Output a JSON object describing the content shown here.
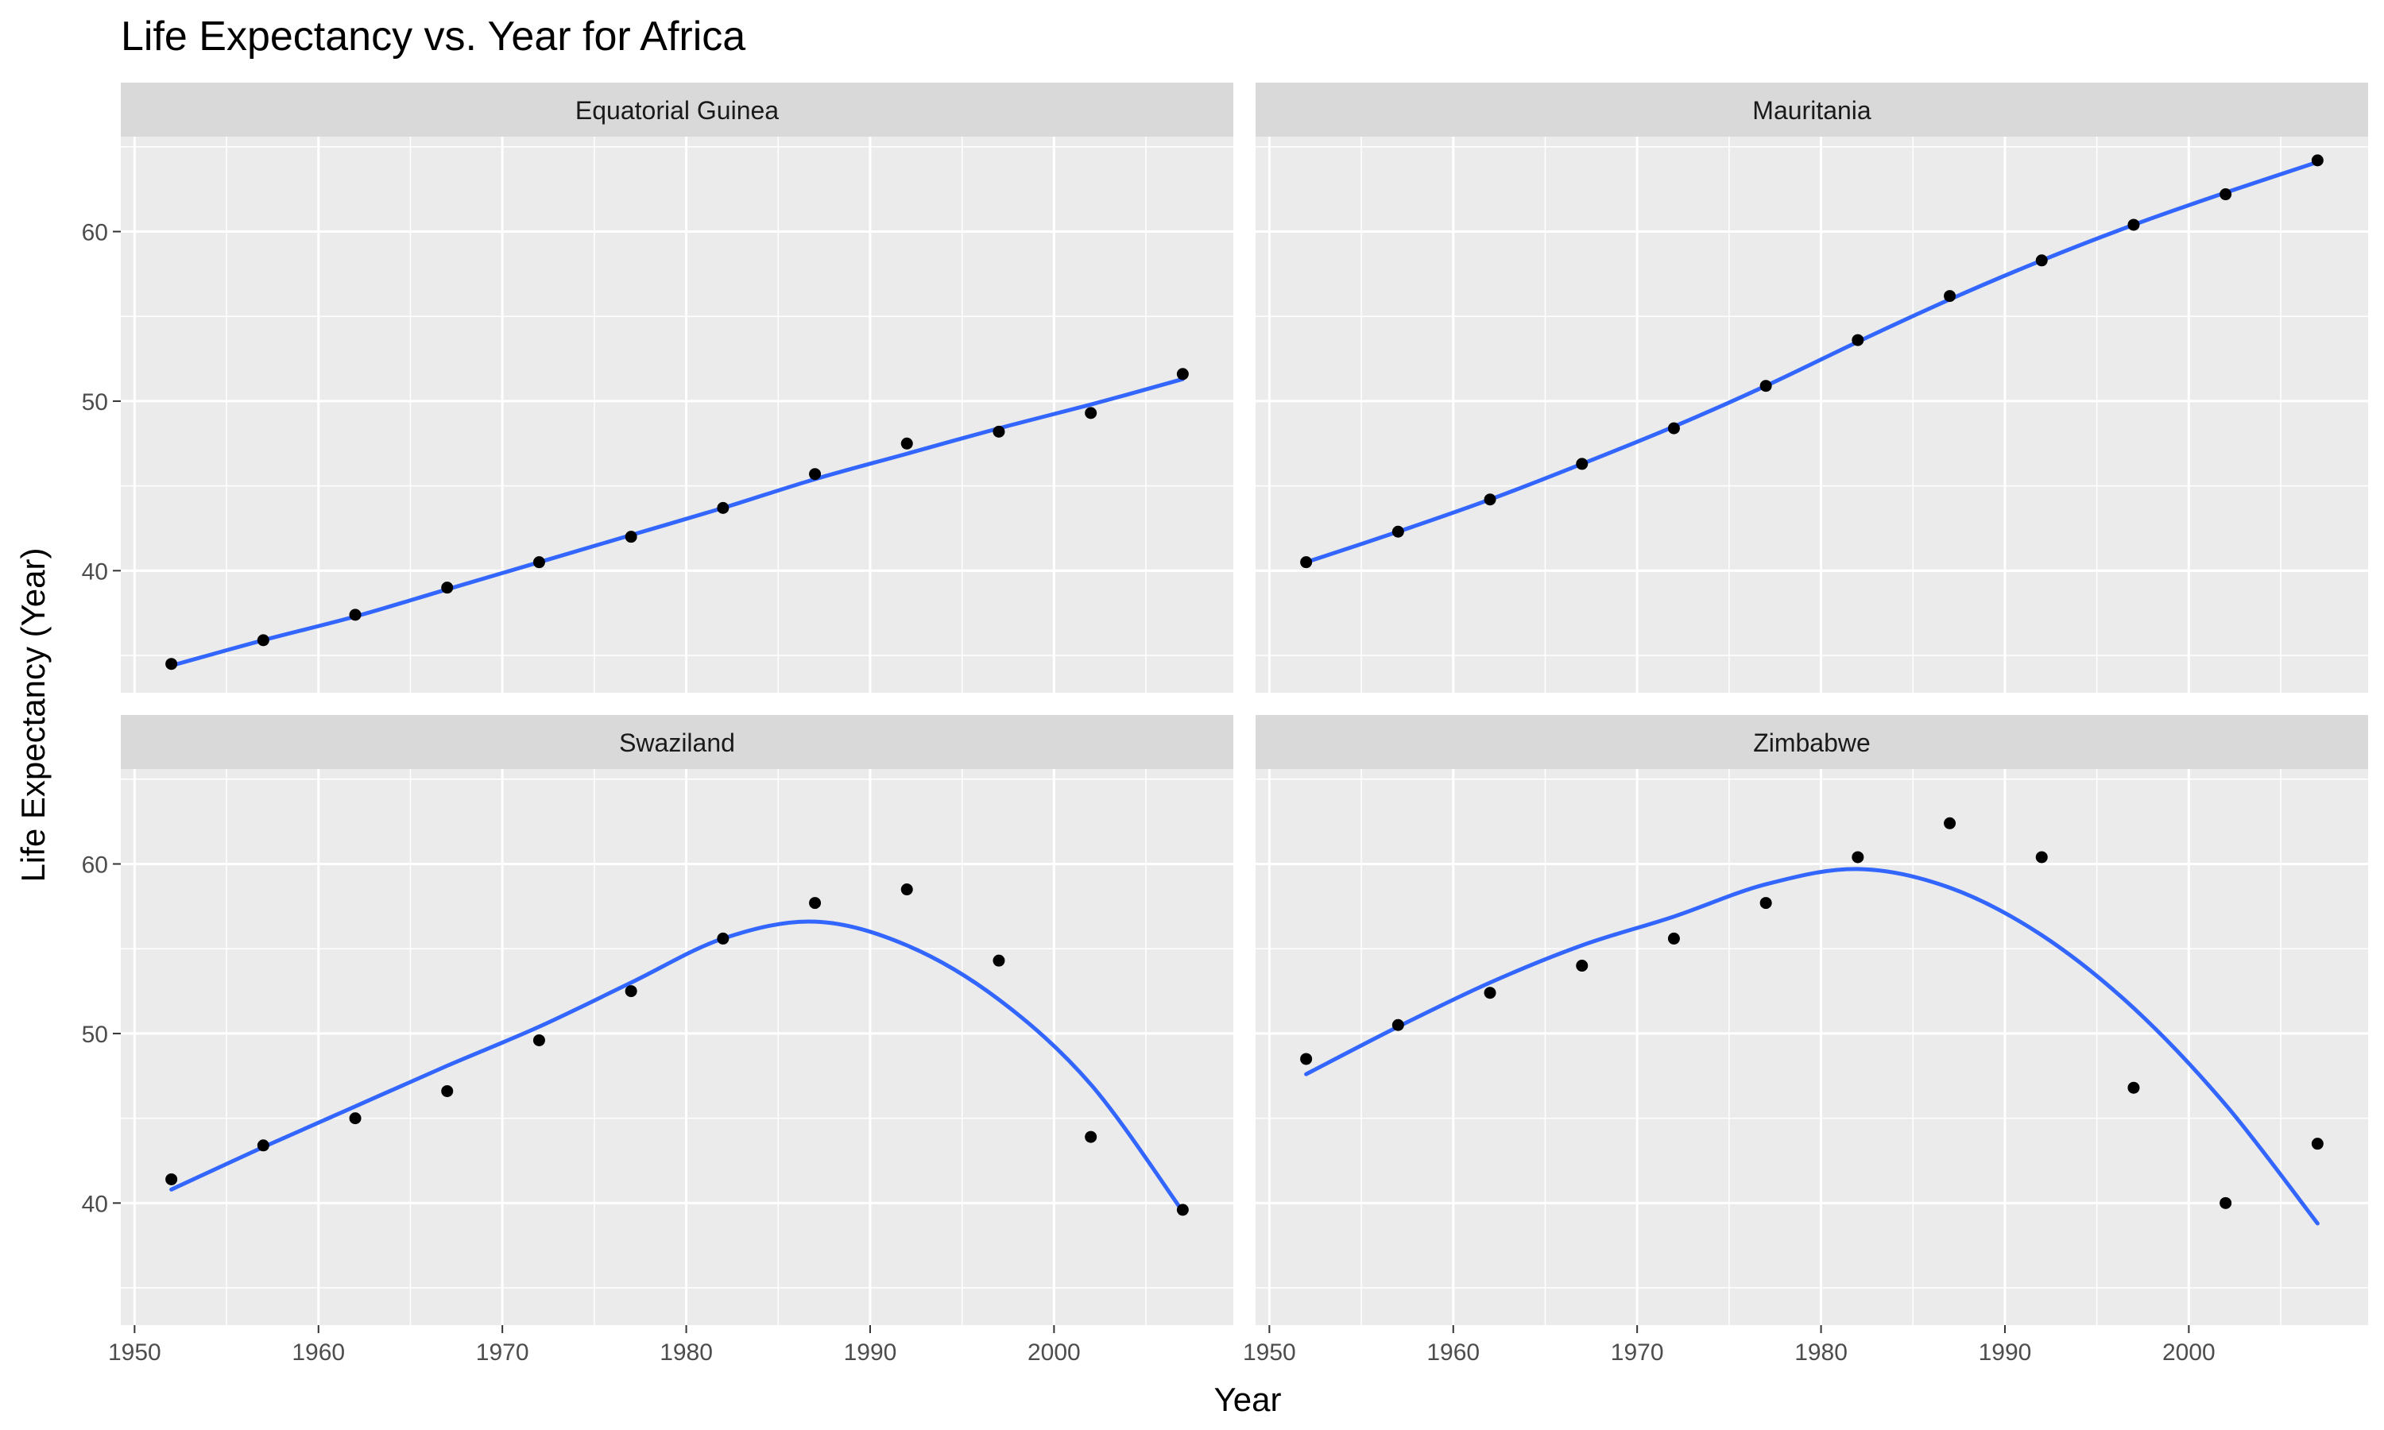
{
  "title": "Life Expectancy vs. Year for Africa",
  "colors": {
    "panel_background": "#ebebeb",
    "strip_background": "#d9d9d9",
    "grid": "#ffffff",
    "point": "#000000",
    "smooth_line": "#3366ff",
    "tick_label": "#4d4d4d"
  },
  "chart_data": {
    "type": "scatter",
    "title": "Life Expectancy vs. Year for Africa",
    "xlabel": "Year",
    "ylabel": "Life Expectancy (Year)",
    "xlim": [
      1949.25,
      2009.75
    ],
    "ylim": [
      32.8,
      65.6
    ],
    "x_ticks": [
      1950,
      1960,
      1970,
      1980,
      1990,
      2000
    ],
    "y_ticks": [
      40,
      50,
      60
    ],
    "grid": true,
    "legend": "none",
    "smoothing": "loess",
    "x": [
      1952,
      1957,
      1962,
      1967,
      1972,
      1977,
      1982,
      1987,
      1992,
      1997,
      2002,
      2007
    ],
    "panels": [
      {
        "name": "Equatorial Guinea",
        "values": [
          34.5,
          35.9,
          37.4,
          39.0,
          40.5,
          42.0,
          43.7,
          45.7,
          47.5,
          48.2,
          49.3,
          51.6
        ],
        "smooth": [
          34.4,
          35.9,
          37.3,
          38.9,
          40.5,
          42.1,
          43.7,
          45.4,
          46.9,
          48.4,
          49.8,
          51.3
        ]
      },
      {
        "name": "Mauritania",
        "values": [
          40.5,
          42.3,
          44.2,
          46.3,
          48.4,
          50.9,
          53.6,
          56.2,
          58.3,
          60.4,
          62.2,
          64.2
        ],
        "smooth": [
          40.5,
          42.3,
          44.2,
          46.3,
          48.5,
          50.9,
          53.5,
          56.0,
          58.3,
          60.4,
          62.3,
          64.1
        ]
      },
      {
        "name": "Swaziland",
        "values": [
          41.4,
          43.4,
          45.0,
          46.6,
          49.6,
          52.5,
          55.6,
          57.7,
          58.5,
          54.3,
          43.9,
          39.6
        ],
        "smooth": [
          40.8,
          43.3,
          45.7,
          48.1,
          50.4,
          53.0,
          55.6,
          56.6,
          55.2,
          52.0,
          47.0,
          39.5
        ]
      },
      {
        "name": "Zimbabwe",
        "values": [
          48.5,
          50.5,
          52.4,
          54.0,
          55.6,
          57.7,
          60.4,
          62.4,
          60.4,
          46.8,
          40.0,
          43.5
        ],
        "smooth": [
          47.6,
          50.4,
          53.0,
          55.2,
          56.9,
          58.8,
          59.7,
          58.6,
          55.8,
          51.5,
          45.8,
          38.8
        ]
      }
    ]
  }
}
